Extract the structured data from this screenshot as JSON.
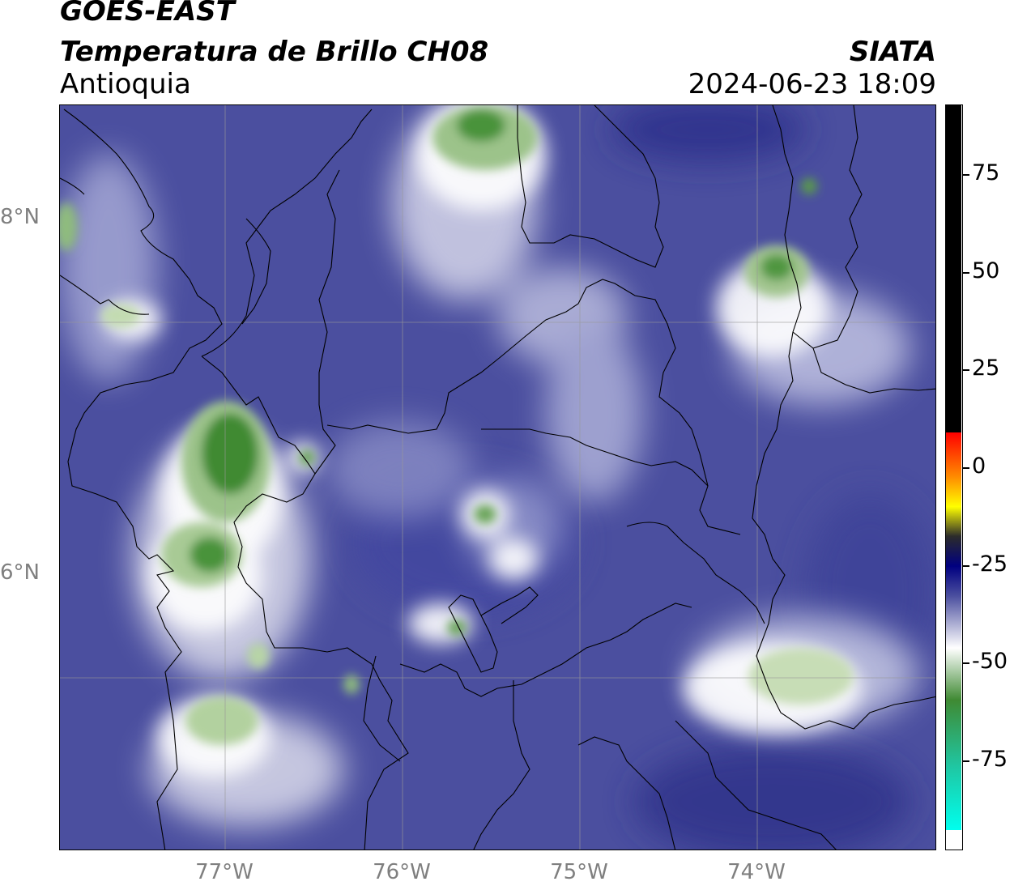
{
  "header": {
    "line1": "GOES-EAST",
    "line2": "Temperatura de Brillo CH08",
    "line3": "Antioquia",
    "org": "SIATA",
    "timestamp": "2024-06-23 18:09"
  },
  "axes": {
    "lat_labels": [
      "8°N",
      "6°N"
    ],
    "lon_labels": [
      "77°W",
      "76°W",
      "75°W",
      "74°W"
    ]
  },
  "colorbar": {
    "ticks": [
      "75",
      "50",
      "25",
      "0",
      "-25",
      "-50",
      "-75"
    ],
    "min": -95,
    "max": 92
  },
  "colors": {
    "base_blue": "#4b4f9f",
    "deep_blue": "#2a2f8a",
    "white_cloud": "#f2f2f7",
    "green_light": "#b9d3a3",
    "green_dark": "#3f8a33"
  }
}
